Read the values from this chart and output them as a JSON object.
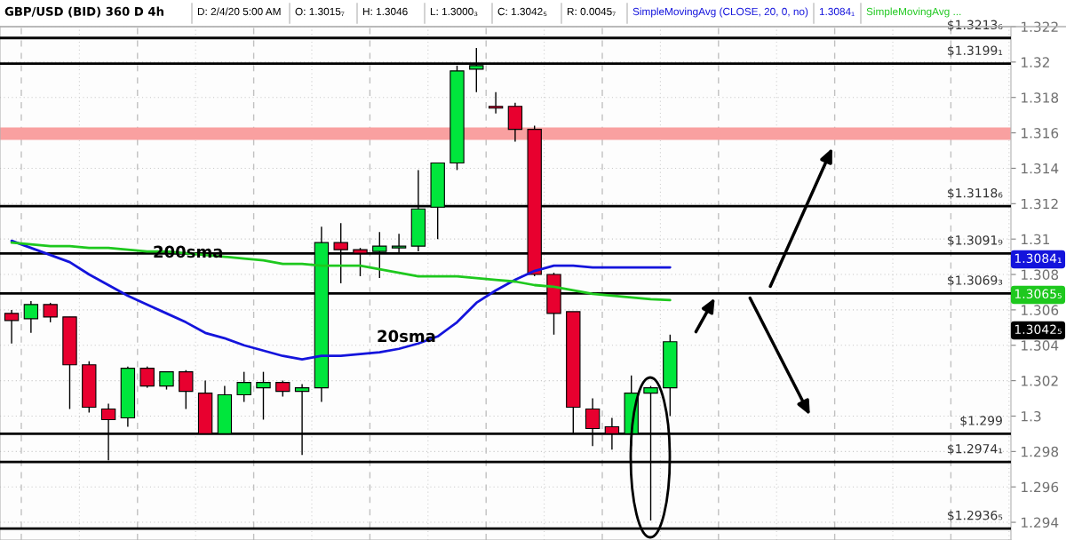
{
  "chart_data": {
    "type": "candlestick",
    "title": "GBP/USD (BID) 360 D 4h",
    "categories": [
      null,
      null,
      null,
      null,
      null,
      null,
      null,
      null,
      null,
      null,
      null,
      null,
      null,
      null,
      null,
      null,
      null,
      null,
      null,
      null,
      null,
      null,
      null,
      null,
      null,
      null,
      null,
      null,
      null,
      null,
      null,
      null,
      null,
      null,
      null,
      null,
      null,
      null,
      null,
      null,
      null,
      null,
      null,
      null,
      null,
      null,
      null,
      null,
      null,
      null,
      null,
      null
    ],
    "ohlc": [
      [
        1.3058,
        1.306,
        1.3041,
        1.3054
      ],
      [
        1.3055,
        1.3065,
        1.3047,
        1.3063
      ],
      [
        1.3063,
        1.3064,
        1.3053,
        1.3056
      ],
      [
        1.3056,
        1.3056,
        1.3004,
        1.3029
      ],
      [
        1.3029,
        1.3031,
        1.3002,
        1.3005
      ],
      [
        1.3004,
        1.3007,
        1.2975,
        1.2998
      ],
      [
        1.2999,
        1.3028,
        1.2994,
        1.3027
      ],
      [
        1.3027,
        1.3028,
        1.3016,
        1.3017
      ],
      [
        1.3017,
        1.3025,
        1.3015,
        1.3025
      ],
      [
        1.3025,
        1.3026,
        1.3004,
        1.3014
      ],
      [
        1.3013,
        1.302,
        1.299,
        1.299
      ],
      [
        1.299,
        1.3017,
        1.299,
        1.3012
      ],
      [
        1.3012,
        1.3025,
        1.3008,
        1.3019
      ],
      [
        1.3016,
        1.3025,
        1.2998,
        1.3019
      ],
      [
        1.3019,
        1.302,
        1.3011,
        1.3014
      ],
      [
        1.3014,
        1.3018,
        1.2978,
        1.3016
      ],
      [
        1.3016,
        1.3107,
        1.3008,
        1.3098
      ],
      [
        1.3098,
        1.3109,
        1.3075,
        1.3094
      ],
      [
        1.3094,
        1.3095,
        1.3079,
        1.3092
      ],
      [
        1.3093,
        1.3104,
        1.3078,
        1.3096
      ],
      [
        1.3095,
        1.3103,
        1.3092,
        1.3096
      ],
      [
        1.3096,
        1.3139,
        1.3093,
        1.3117
      ],
      [
        1.3118,
        1.3143,
        1.31,
        1.3143
      ],
      [
        1.3143,
        1.3198,
        1.3139,
        1.3195
      ],
      [
        1.3196,
        1.3208,
        1.3183,
        1.3198
      ],
      [
        1.3175,
        1.3183,
        1.3171,
        1.3174
      ],
      [
        1.3175,
        1.3177,
        1.3155,
        1.3162
      ],
      [
        1.3162,
        1.3164,
        1.3079,
        1.308
      ],
      [
        1.308,
        1.3081,
        1.3046,
        1.3058
      ],
      [
        1.3059,
        1.3059,
        1.299,
        1.3005
      ],
      [
        1.3004,
        1.301,
        1.2983,
        1.2993
      ],
      [
        1.2994,
        1.2999,
        1.2981,
        1.299
      ],
      [
        1.299,
        1.3023,
        1.2983,
        1.3013
      ],
      [
        1.3013,
        1.3017,
        1.2941,
        1.3016
      ],
      [
        1.3016,
        1.3046,
        1.3,
        1.3042
      ],
      null,
      null,
      null,
      null,
      null,
      null,
      null,
      null,
      null,
      null,
      null,
      null,
      null,
      null,
      null,
      null,
      null
    ],
    "series": [
      {
        "type": "line",
        "color": "#1414dc",
        "values": [
          1.3099,
          1.3095,
          1.3091,
          1.3087,
          1.308,
          1.3074,
          1.3068,
          1.3063,
          1.3058,
          1.3053,
          1.3047,
          1.3044,
          1.304,
          1.3037,
          1.3034,
          1.3032,
          1.3034,
          1.3034,
          1.3035,
          1.3036,
          1.3038,
          1.3041,
          1.3045,
          1.3053,
          1.3064,
          1.3071,
          1.3077,
          1.3082,
          1.3085,
          1.3085,
          1.3084,
          1.3084,
          1.3084,
          1.3084,
          1.3084,
          null,
          null,
          null,
          null,
          null,
          null,
          null,
          null,
          null,
          null,
          null,
          null,
          null,
          null,
          null,
          null,
          null
        ]
      },
      {
        "type": "line",
        "color": "#1ec81e",
        "values": [
          1.3098,
          1.3097,
          1.3096,
          1.3096,
          1.3095,
          1.3095,
          1.3094,
          1.3093,
          1.3093,
          1.3092,
          1.3091,
          1.309,
          1.3089,
          1.3088,
          1.3086,
          1.3086,
          1.3085,
          1.3085,
          1.3085,
          1.3083,
          1.3081,
          1.3079,
          1.3079,
          1.3079,
          1.3078,
          1.3077,
          1.3076,
          1.3074,
          1.3073,
          1.3071,
          1.3069,
          1.3068,
          1.3067,
          1.3066,
          1.30655,
          null,
          null,
          null,
          null,
          null,
          null,
          null,
          null,
          null,
          null,
          null,
          null,
          null,
          null,
          null,
          null,
          null
        ]
      }
    ],
    "ylim": [
      1.293,
      1.322
    ],
    "yticks": [
      1.294,
      1.296,
      1.298,
      1.3,
      1.302,
      1.304,
      1.306,
      1.308,
      1.31,
      1.312,
      1.314,
      1.316,
      1.318,
      1.32,
      1.322
    ],
    "grid": true,
    "ref_lines": [
      {
        "axis": "y",
        "value": 1.32136,
        "label": "$1.3213₆",
        "color": "#000000"
      },
      {
        "axis": "y",
        "value": 1.31991,
        "label": "$1.3199₁",
        "color": "#000000"
      },
      {
        "axis": "y",
        "value": 1.31186,
        "label": "$1.3118₆",
        "color": "#000000"
      },
      {
        "axis": "y",
        "value": 1.30919,
        "label": "$1.3091₉",
        "color": "#000000"
      },
      {
        "axis": "y",
        "value": 1.30693,
        "label": "$1.3069₃",
        "color": "#000000"
      },
      {
        "axis": "y",
        "value": 1.299,
        "label": "$1.299",
        "color": "#000000"
      },
      {
        "axis": "y",
        "value": 1.29741,
        "label": "$1.2974₁",
        "color": "#000000"
      },
      {
        "axis": "y",
        "value": 1.29365,
        "label": "$1.2936₅",
        "color": "#000000"
      }
    ],
    "bands": [
      {
        "axis": "y",
        "from": 1.3156,
        "to": 1.3163,
        "color": "#f9a0a0"
      }
    ],
    "annotations": [
      "D: 2/4/20 5:00 AM",
      "O: 1.3015₇",
      "H: 1.3046",
      "L: 1.3000₃",
      "C: 1.3042₅",
      "R: 0.0045₇",
      "SimpleMovingAvg (CLOSE, 20, 0, no)",
      "1.3084₁",
      "SimpleMovingAvg ...",
      "200sma",
      "20sma",
      "1.3084₁",
      "1.3065₅",
      "1.3042₅"
    ]
  }
}
